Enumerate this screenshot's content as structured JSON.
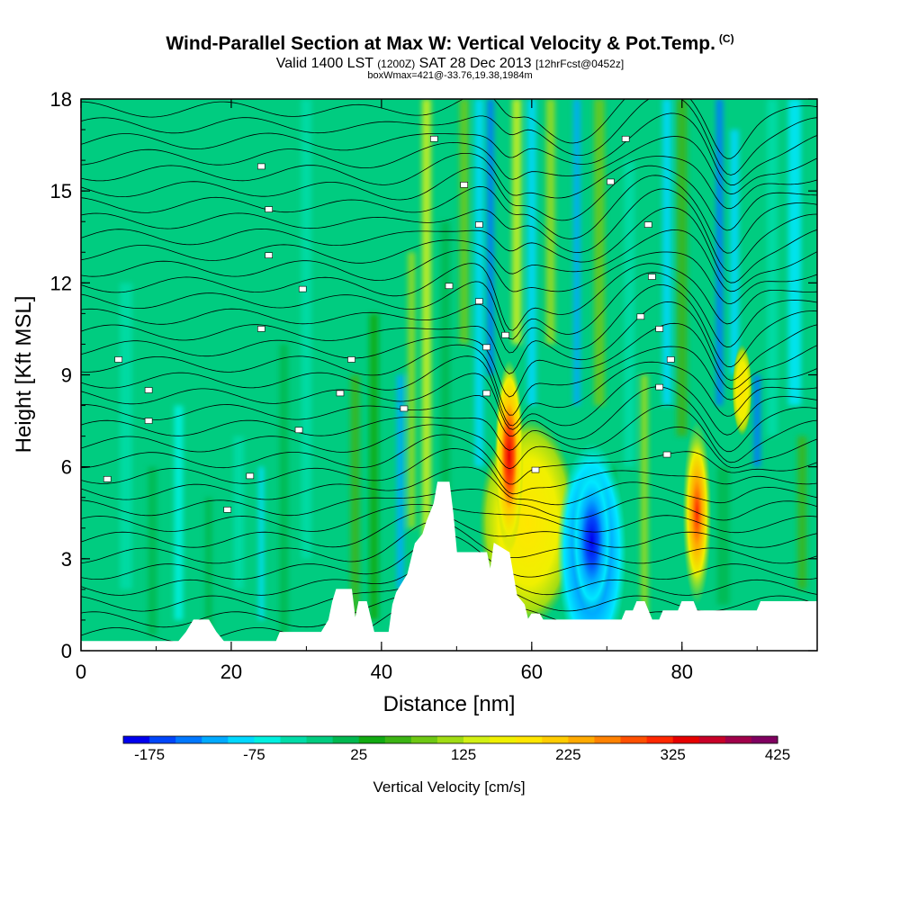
{
  "header": {
    "title": "Wind-Parallel Section at Max W: Vertical Velocity & Pot.Temp.",
    "copyright": "(C)",
    "valid": "Valid 1400 LST",
    "utc": "(1200Z)",
    "date": "SAT 28 Dec 2013",
    "forecast": "[12hrFcst@0452z]",
    "boxline": "boxWmax=421@-33.76,19.38,1984m"
  },
  "chart_data": {
    "type": "heatmap",
    "xlabel": "Distance [nm]",
    "ylabel": "Height [Kft MSL]",
    "xlim": [
      0,
      98
    ],
    "ylim": [
      0,
      18
    ],
    "xticks": [
      0,
      20,
      40,
      60,
      80
    ],
    "yticks": [
      0,
      3,
      6,
      9,
      12,
      15,
      18
    ],
    "overlay": "Potential temperature isentropes (black contours)",
    "features": [
      {
        "x": 57,
        "bottom": 3.2,
        "top": 9.5,
        "w": 280,
        "label": "updraft core (max ~421 cm/s)"
      },
      {
        "x": 68,
        "bottom": 1.2,
        "top": 6.0,
        "w": -170,
        "label": "downdraft core"
      },
      {
        "x": 82,
        "bottom": 1.5,
        "top": 7.5,
        "w": 300,
        "label": "updraft"
      },
      {
        "x": 88,
        "bottom": 7.0,
        "top": 10.0,
        "w": 150,
        "label": "weak updraft"
      }
    ],
    "terrain": [
      [
        0,
        0.3
      ],
      [
        13,
        0.3
      ],
      [
        14,
        0.6
      ],
      [
        15,
        1.0
      ],
      [
        17,
        1.0
      ],
      [
        18,
        0.6
      ],
      [
        19,
        0.3
      ],
      [
        26,
        0.3
      ],
      [
        26.5,
        0.6
      ],
      [
        32,
        0.6
      ],
      [
        33,
        1.0
      ],
      [
        33.5,
        1.6
      ],
      [
        34,
        2.0
      ],
      [
        36,
        2.0
      ],
      [
        36.5,
        1.0
      ],
      [
        37,
        1.6
      ],
      [
        38,
        1.6
      ],
      [
        39,
        0.6
      ],
      [
        41,
        0.6
      ],
      [
        41.5,
        1.5
      ],
      [
        42,
        1.9
      ],
      [
        43.5,
        2.5
      ],
      [
        44.5,
        3.5
      ],
      [
        45.5,
        3.8
      ],
      [
        46,
        4.2
      ],
      [
        47,
        4.8
      ],
      [
        47.5,
        5.5
      ],
      [
        49,
        5.5
      ],
      [
        49.5,
        4.5
      ],
      [
        50,
        3.2
      ],
      [
        54,
        3.2
      ],
      [
        54.5,
        2.6
      ],
      [
        55,
        3.5
      ],
      [
        57,
        3.2
      ],
      [
        58,
        1.8
      ],
      [
        59,
        1.5
      ],
      [
        59.5,
        1.0
      ],
      [
        60,
        1.2
      ],
      [
        61,
        1.2
      ],
      [
        61.5,
        1.0
      ],
      [
        72,
        1.0
      ],
      [
        72.5,
        1.3
      ],
      [
        73.5,
        1.3
      ],
      [
        74,
        1.6
      ],
      [
        75,
        1.6
      ],
      [
        75.5,
        1.3
      ],
      [
        76,
        1.0
      ],
      [
        77,
        1.0
      ],
      [
        77.5,
        1.3
      ],
      [
        79.5,
        1.3
      ],
      [
        80,
        1.6
      ],
      [
        81.5,
        1.6
      ],
      [
        82,
        1.3
      ],
      [
        90,
        1.3
      ],
      [
        90.5,
        1.6
      ],
      [
        98,
        1.6
      ]
    ],
    "isentrope_labels": [
      {
        "x": 5,
        "y": 9.5
      },
      {
        "x": 9,
        "y": 8.5
      },
      {
        "x": 9,
        "y": 7.5
      },
      {
        "x": 3.5,
        "y": 5.6
      },
      {
        "x": 24,
        "y": 15.8
      },
      {
        "x": 25,
        "y": 14.4
      },
      {
        "x": 25,
        "y": 12.9
      },
      {
        "x": 29.5,
        "y": 11.8
      },
      {
        "x": 24,
        "y": 10.5
      },
      {
        "x": 36,
        "y": 9.5
      },
      {
        "x": 34.5,
        "y": 8.4
      },
      {
        "x": 29,
        "y": 7.2
      },
      {
        "x": 22.5,
        "y": 5.7
      },
      {
        "x": 19.5,
        "y": 4.6
      },
      {
        "x": 43,
        "y": 7.9
      },
      {
        "x": 47,
        "y": 16.7
      },
      {
        "x": 51,
        "y": 15.2
      },
      {
        "x": 53,
        "y": 13.9
      },
      {
        "x": 49,
        "y": 11.9
      },
      {
        "x": 53,
        "y": 11.4
      },
      {
        "x": 54,
        "y": 9.9
      },
      {
        "x": 56.5,
        "y": 10.3
      },
      {
        "x": 54,
        "y": 8.4
      },
      {
        "x": 60.5,
        "y": 5.9
      },
      {
        "x": 72.5,
        "y": 16.7
      },
      {
        "x": 70.5,
        "y": 15.3
      },
      {
        "x": 75.5,
        "y": 13.9
      },
      {
        "x": 76,
        "y": 12.2
      },
      {
        "x": 74.5,
        "y": 10.9
      },
      {
        "x": 77,
        "y": 10.5
      },
      {
        "x": 78.5,
        "y": 9.5
      },
      {
        "x": 77,
        "y": 8.6
      },
      {
        "x": 78,
        "y": 6.4
      }
    ],
    "colorbar": {
      "title": "Vertical Velocity [cm/s]",
      "min": -200,
      "max": 425,
      "step": 25,
      "tick_labels": [
        "-175",
        "-75",
        "25",
        "125",
        "225",
        "325",
        "425"
      ],
      "colors": [
        "#0000ee",
        "#0046fa",
        "#0078ff",
        "#00aaff",
        "#00d8ff",
        "#00f0e0",
        "#00dca8",
        "#00cc80",
        "#00b850",
        "#12aa12",
        "#3cb414",
        "#6ec814",
        "#a0dc14",
        "#d2f014",
        "#f0f000",
        "#ffe600",
        "#ffcc00",
        "#ffaa00",
        "#ff8200",
        "#ff5000",
        "#ff2800",
        "#e60000",
        "#c80028",
        "#a0004a",
        "#800060"
      ]
    }
  }
}
